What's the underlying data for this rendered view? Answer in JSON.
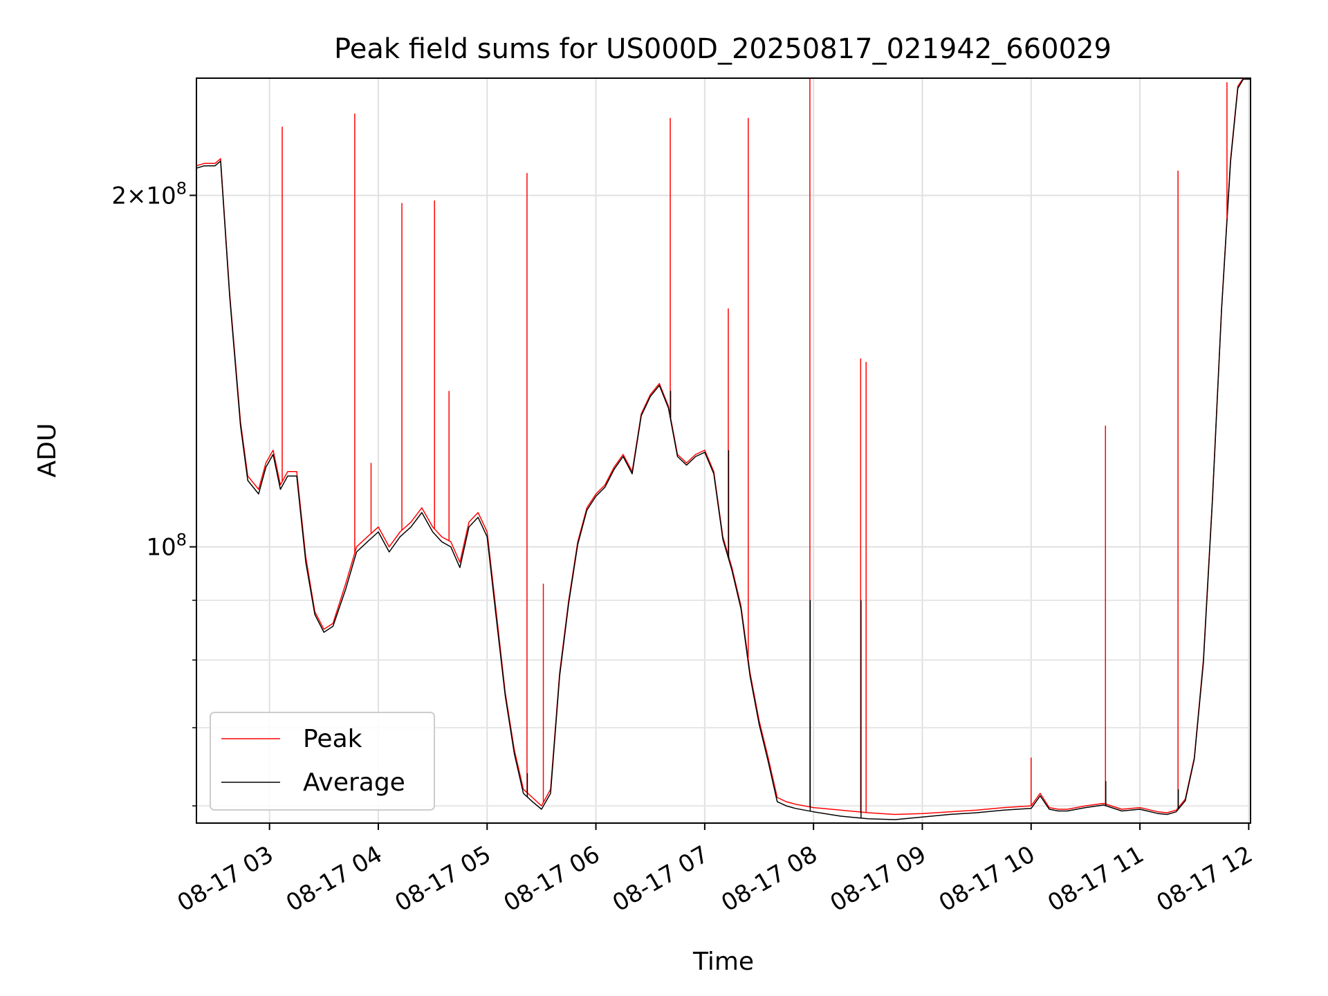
{
  "chart_data": {
    "type": "line",
    "title": "Peak field sums for US000D_20250817_021942_660029",
    "xlabel": "Time",
    "ylabel": "ADU",
    "x_ticks": [
      "08-17 03",
      "08-17 04",
      "08-17 05",
      "08-17 06",
      "08-17 07",
      "08-17 08",
      "08-17 09",
      "08-17 10",
      "08-17 11",
      "08-17 12"
    ],
    "y_scale": "log",
    "y_ticks": [
      {
        "value": 200000000,
        "mantissa": "2",
        "exponent": "8"
      },
      {
        "value": 100000000,
        "mantissa": "",
        "exponent": "8"
      }
    ],
    "xlim": [
      "2025-08-17T02:19:42",
      "2025-08-17T12:01:00"
    ],
    "ylim": [
      58000000,
      252000000
    ],
    "grid": true,
    "legend_loc": "lower-left",
    "colors": {
      "peak": "#ff0000",
      "average": "#000000"
    },
    "series": [
      {
        "name": "Peak",
        "x": [
          "2025-08-17T02:19:42",
          "2025-08-17T02:24:00",
          "2025-08-17T02:30:00",
          "2025-08-17T02:33:00",
          "2025-08-17T02:38:00",
          "2025-08-17T02:44:00",
          "2025-08-17T02:48:00",
          "2025-08-17T02:54:00",
          "2025-08-17T02:58:00",
          "2025-08-17T03:02:00",
          "2025-08-17T03:06:00",
          "2025-08-17T03:10:00",
          "2025-08-17T03:15:00",
          "2025-08-17T03:20:00",
          "2025-08-17T03:25:00",
          "2025-08-17T03:30:00",
          "2025-08-17T03:35:00",
          "2025-08-17T03:42:00",
          "2025-08-17T03:48:00",
          "2025-08-17T03:54:00",
          "2025-08-17T04:00:00",
          "2025-08-17T04:06:00",
          "2025-08-17T04:12:00",
          "2025-08-17T04:18:00",
          "2025-08-17T04:24:00",
          "2025-08-17T04:30:00",
          "2025-08-17T04:35:00",
          "2025-08-17T04:40:00",
          "2025-08-17T04:45:00",
          "2025-08-17T04:50:00",
          "2025-08-17T04:55:00",
          "2025-08-17T05:00:00",
          "2025-08-17T05:05:00",
          "2025-08-17T05:10:00",
          "2025-08-17T05:15:00",
          "2025-08-17T05:20:00",
          "2025-08-17T05:25:00",
          "2025-08-17T05:30:00",
          "2025-08-17T05:35:00",
          "2025-08-17T05:40:00",
          "2025-08-17T05:45:00",
          "2025-08-17T05:50:00",
          "2025-08-17T05:55:00",
          "2025-08-17T06:00:00",
          "2025-08-17T06:05:00",
          "2025-08-17T06:10:00",
          "2025-08-17T06:15:00",
          "2025-08-17T06:20:00",
          "2025-08-17T06:25:00",
          "2025-08-17T06:30:00",
          "2025-08-17T06:35:00",
          "2025-08-17T06:40:00",
          "2025-08-17T06:45:00",
          "2025-08-17T06:50:00",
          "2025-08-17T06:55:00",
          "2025-08-17T07:00:00",
          "2025-08-17T07:05:00",
          "2025-08-17T07:10:00",
          "2025-08-17T07:15:00",
          "2025-08-17T07:20:00",
          "2025-08-17T07:25:00",
          "2025-08-17T07:30:00",
          "2025-08-17T07:35:00",
          "2025-08-17T07:40:00",
          "2025-08-17T07:45:00",
          "2025-08-17T07:50:00",
          "2025-08-17T08:00:00",
          "2025-08-17T08:15:00",
          "2025-08-17T08:30:00",
          "2025-08-17T08:45:00",
          "2025-08-17T09:00:00",
          "2025-08-17T09:15:00",
          "2025-08-17T09:30:00",
          "2025-08-17T09:45:00",
          "2025-08-17T10:00:00",
          "2025-08-17T10:05:00",
          "2025-08-17T10:10:00",
          "2025-08-17T10:15:00",
          "2025-08-17T10:20:00",
          "2025-08-17T10:30:00",
          "2025-08-17T10:40:00",
          "2025-08-17T10:50:00",
          "2025-08-17T11:00:00",
          "2025-08-17T11:10:00",
          "2025-08-17T11:15:00",
          "2025-08-17T11:20:00",
          "2025-08-17T11:25:00",
          "2025-08-17T11:30:00",
          "2025-08-17T11:35:00",
          "2025-08-17T11:40:00",
          "2025-08-17T11:45:00",
          "2025-08-17T11:50:00",
          "2025-08-17T11:54:00",
          "2025-08-17T11:57:00",
          "2025-08-17T12:01:00"
        ],
        "y": [
          212000000,
          213000000,
          213000000,
          215000000,
          165000000,
          128000000,
          115000000,
          112000000,
          118000000,
          121000000,
          113000000,
          116000000,
          116000000,
          98000000,
          88000000,
          85000000,
          86000000,
          93000000,
          100000000,
          102000000,
          104000000,
          100000000,
          103000000,
          105000000,
          108000000,
          104000000,
          102000000,
          101000000,
          97000000,
          105000000,
          107000000,
          103000000,
          88000000,
          75000000,
          67000000,
          62000000,
          61000000,
          60000000,
          62000000,
          78000000,
          90000000,
          101000000,
          108000000,
          111000000,
          113000000,
          117000000,
          120000000,
          116000000,
          130000000,
          135000000,
          138000000,
          132000000,
          120000000,
          118000000,
          120000000,
          121000000,
          116000000,
          102000000,
          96000000,
          89000000,
          78000000,
          71000000,
          66000000,
          61000000,
          60500000,
          60200000,
          59800000,
          59500000,
          59200000,
          59000000,
          59100000,
          59300000,
          59500000,
          59800000,
          60000000,
          61500000,
          59800000,
          59600000,
          59600000,
          60000000,
          60300000,
          59600000,
          59800000,
          59300000,
          59200000,
          59500000,
          60800000,
          66000000,
          80000000,
          110000000,
          160000000,
          215000000,
          248000000,
          252000000,
          252000000
        ]
      },
      {
        "name": "Average",
        "x": [
          "2025-08-17T02:19:42",
          "2025-08-17T02:24:00",
          "2025-08-17T02:30:00",
          "2025-08-17T02:33:00",
          "2025-08-17T02:38:00",
          "2025-08-17T02:44:00",
          "2025-08-17T02:48:00",
          "2025-08-17T02:54:00",
          "2025-08-17T02:58:00",
          "2025-08-17T03:02:00",
          "2025-08-17T03:06:00",
          "2025-08-17T03:10:00",
          "2025-08-17T03:15:00",
          "2025-08-17T03:20:00",
          "2025-08-17T03:25:00",
          "2025-08-17T03:30:00",
          "2025-08-17T03:35:00",
          "2025-08-17T03:42:00",
          "2025-08-17T03:48:00",
          "2025-08-17T03:54:00",
          "2025-08-17T04:00:00",
          "2025-08-17T04:06:00",
          "2025-08-17T04:12:00",
          "2025-08-17T04:18:00",
          "2025-08-17T04:24:00",
          "2025-08-17T04:30:00",
          "2025-08-17T04:35:00",
          "2025-08-17T04:40:00",
          "2025-08-17T04:45:00",
          "2025-08-17T04:50:00",
          "2025-08-17T04:55:00",
          "2025-08-17T05:00:00",
          "2025-08-17T05:05:00",
          "2025-08-17T05:10:00",
          "2025-08-17T05:15:00",
          "2025-08-17T05:20:00",
          "2025-08-17T05:25:00",
          "2025-08-17T05:30:00",
          "2025-08-17T05:35:00",
          "2025-08-17T05:40:00",
          "2025-08-17T05:45:00",
          "2025-08-17T05:50:00",
          "2025-08-17T05:55:00",
          "2025-08-17T06:00:00",
          "2025-08-17T06:05:00",
          "2025-08-17T06:10:00",
          "2025-08-17T06:15:00",
          "2025-08-17T06:20:00",
          "2025-08-17T06:25:00",
          "2025-08-17T06:30:00",
          "2025-08-17T06:35:00",
          "2025-08-17T06:40:00",
          "2025-08-17T06:45:00",
          "2025-08-17T06:50:00",
          "2025-08-17T06:55:00",
          "2025-08-17T07:00:00",
          "2025-08-17T07:05:00",
          "2025-08-17T07:10:00",
          "2025-08-17T07:15:00",
          "2025-08-17T07:20:00",
          "2025-08-17T07:25:00",
          "2025-08-17T07:30:00",
          "2025-08-17T07:35:00",
          "2025-08-17T07:40:00",
          "2025-08-17T07:45:00",
          "2025-08-17T07:50:00",
          "2025-08-17T08:00:00",
          "2025-08-17T08:15:00",
          "2025-08-17T08:30:00",
          "2025-08-17T08:45:00",
          "2025-08-17T09:00:00",
          "2025-08-17T09:15:00",
          "2025-08-17T09:30:00",
          "2025-08-17T09:45:00",
          "2025-08-17T10:00:00",
          "2025-08-17T10:05:00",
          "2025-08-17T10:10:00",
          "2025-08-17T10:15:00",
          "2025-08-17T10:20:00",
          "2025-08-17T10:30:00",
          "2025-08-17T10:40:00",
          "2025-08-17T10:50:00",
          "2025-08-17T11:00:00",
          "2025-08-17T11:10:00",
          "2025-08-17T11:15:00",
          "2025-08-17T11:20:00",
          "2025-08-17T11:25:00",
          "2025-08-17T11:30:00",
          "2025-08-17T11:35:00",
          "2025-08-17T11:40:00",
          "2025-08-17T11:45:00",
          "2025-08-17T11:50:00",
          "2025-08-17T11:54:00",
          "2025-08-17T11:57:00",
          "2025-08-17T12:01:00"
        ],
        "y": [
          211000000,
          212000000,
          212000000,
          214000000,
          164000000,
          127000000,
          114000000,
          111000000,
          117000000,
          120000000,
          112000000,
          115000000,
          115000000,
          97000000,
          87500000,
          84500000,
          85500000,
          92000000,
          99000000,
          101000000,
          103000000,
          99000000,
          102000000,
          104000000,
          107000000,
          103000000,
          101000000,
          100000000,
          96000000,
          104000000,
          106000000,
          102000000,
          87000000,
          74500000,
          66500000,
          61500000,
          60500000,
          59600000,
          61500000,
          77500000,
          89500000,
          100500000,
          107500000,
          110500000,
          112500000,
          116500000,
          119500000,
          115500000,
          129500000,
          134500000,
          137500000,
          131500000,
          119500000,
          117500000,
          119500000,
          120500000,
          115500000,
          101500000,
          95500000,
          88500000,
          77500000,
          70500000,
          65500000,
          60500000,
          60000000,
          59700000,
          59300000,
          58800000,
          58500000,
          58400000,
          58700000,
          59000000,
          59200000,
          59500000,
          59700000,
          61200000,
          59600000,
          59400000,
          59400000,
          59800000,
          60100000,
          59400000,
          59600000,
          59100000,
          59000000,
          59300000,
          60600000,
          65800000,
          79500000,
          109500000,
          159500000,
          214000000,
          247000000,
          251500000,
          251500000
        ]
      }
    ],
    "spikes": {
      "x": [
        "2025-08-17T03:07:00",
        "2025-08-17T03:47:00",
        "2025-08-17T03:56:00",
        "2025-08-17T04:13:00",
        "2025-08-17T04:31:00",
        "2025-08-17T04:39:00",
        "2025-08-17T05:22:00",
        "2025-08-17T05:31:00",
        "2025-08-17T06:41:00",
        "2025-08-17T07:13:00",
        "2025-08-17T07:24:00",
        "2025-08-17T07:58:00",
        "2025-08-17T08:26:00",
        "2025-08-17T08:29:00",
        "2025-08-17T10:00:00",
        "2025-08-17T10:41:00",
        "2025-08-17T11:21:00",
        "2025-08-17T11:48:00"
      ],
      "peak": [
        229000000,
        235000000,
        118000000,
        197000000,
        198000000,
        136000000,
        209000000,
        93000000,
        233000000,
        160000000,
        233000000,
        252000000,
        145000000,
        144000000,
        66000000,
        127000000,
        210000000,
        250000000
      ],
      "average": [
        null,
        null,
        null,
        null,
        null,
        null,
        64000000,
        null,
        136000000,
        121000000,
        null,
        90000000,
        90000000,
        null,
        null,
        63000000,
        62000000,
        null
      ]
    }
  }
}
